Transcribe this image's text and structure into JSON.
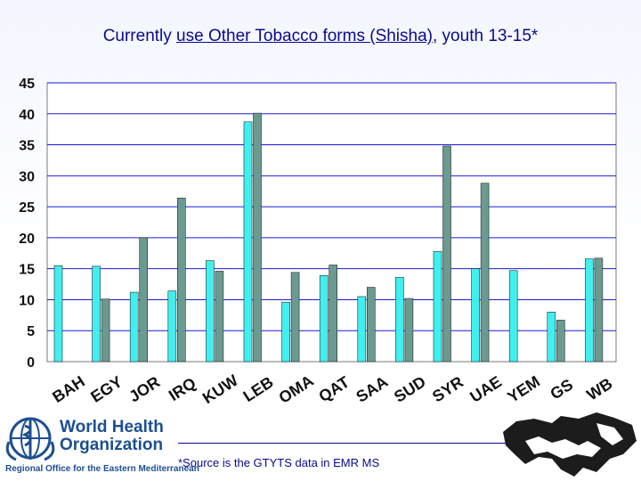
{
  "title": {
    "part1": "Currently ",
    "underlined": "use Other Tobacco forms (Shisha)",
    "part2": ", youth 13-15*"
  },
  "footnote": "*Source is the GTYTS data in EMR MS",
  "logo": {
    "line1": "World Health",
    "line2": "Organization",
    "region": "Regional Office for the Eastern Mediterranean"
  },
  "colors": {
    "series_a": "#40f0f0",
    "series_b": "#6a9a90",
    "grid": "#1a1add",
    "plot_bg": "#ffffff"
  },
  "chart_data": {
    "type": "bar",
    "title": "Currently use Other Tobacco forms (Shisha), youth 13-15*",
    "categories": [
      "BAH",
      "EGY",
      "JOR",
      "IRQ",
      "KUW",
      "LEB",
      "OMA",
      "QAT",
      "SAA",
      "SUD",
      "SYR",
      "UAE",
      "YEM",
      "GS",
      "WB"
    ],
    "series": [
      {
        "values": [
          15.5,
          15.4,
          11.2,
          11.4,
          16.3,
          38.7,
          9.6,
          13.9,
          10.5,
          13.6,
          17.8,
          15.0,
          14.7,
          8.0,
          16.6
        ]
      },
      {
        "values": [
          null,
          10.1,
          20.0,
          26.4,
          14.6,
          40.1,
          14.4,
          15.6,
          12.0,
          10.2,
          34.8,
          28.8,
          null,
          6.7,
          16.7
        ]
      }
    ],
    "yticks": [
      0,
      5,
      10,
      15,
      20,
      25,
      30,
      35,
      40,
      45
    ],
    "ylim": [
      0,
      45
    ],
    "grid": true,
    "legend": "none"
  }
}
